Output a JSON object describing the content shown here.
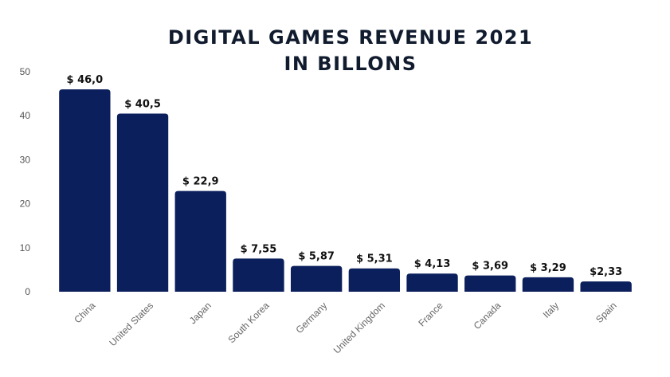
{
  "chart_data": {
    "type": "bar",
    "title_lines": [
      "DIGITAL GAMES REVENUE 2021",
      "IN BILLONS"
    ],
    "categories": [
      "China",
      "United States",
      "Japan",
      "South Korea",
      "Germany",
      "United Kingdom",
      "France",
      "Canada",
      "Italy",
      "Spain"
    ],
    "values": [
      46.0,
      40.5,
      22.9,
      7.55,
      5.87,
      5.31,
      4.13,
      3.69,
      3.29,
      2.33
    ],
    "data_labels": [
      "$ 46,0",
      "$ 40,5",
      "$ 22,9",
      "$ 7,55",
      "$ 5,87",
      "$ 5,31",
      "$ 4,13",
      "$ 3,69",
      "$ 3,29",
      "$2,33"
    ],
    "yticks": [
      0,
      10,
      20,
      30,
      40,
      50
    ],
    "ylim": [
      0,
      50
    ],
    "grid": false,
    "legend": "none",
    "bar_color": "#0b1f5c"
  }
}
